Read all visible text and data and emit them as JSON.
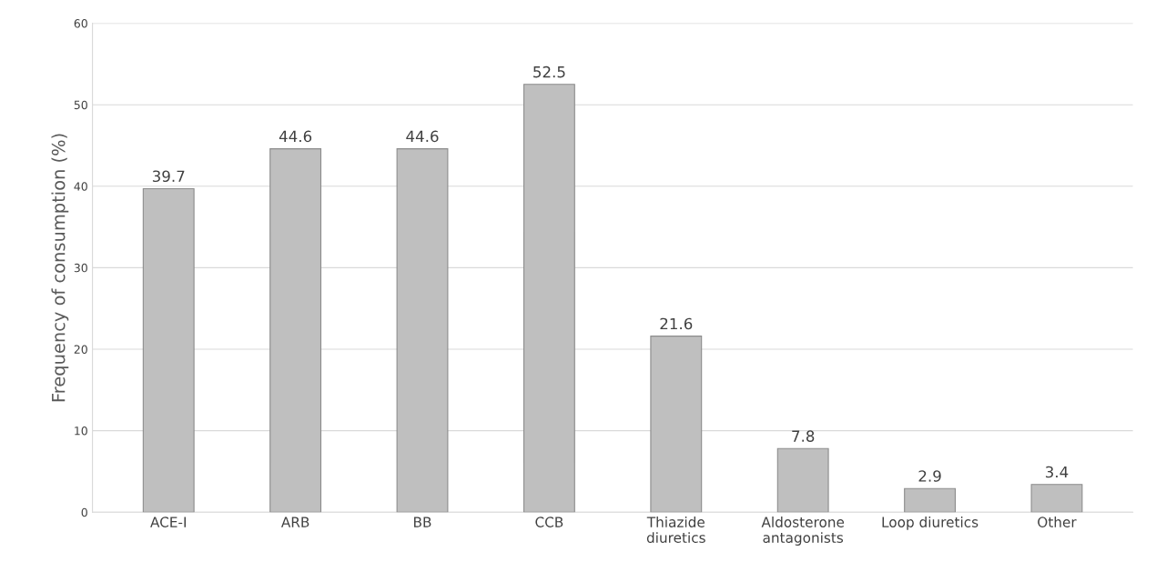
{
  "chart_data": {
    "type": "bar",
    "ylabel": "Frequency of consumption (%)",
    "categories": [
      "ACE-I",
      "ARB",
      "BB",
      "CCB",
      "Thiazide\ndiuretics",
      "Aldosterone\nantagonists",
      "Loop diuretics",
      "Other"
    ],
    "values": [
      39.7,
      44.6,
      44.6,
      52.5,
      21.6,
      7.8,
      2.9,
      3.4
    ],
    "color": "#bfbfbf",
    "ylim": [
      0,
      60
    ],
    "yticks": [
      0,
      10,
      20,
      30,
      40,
      50,
      60
    ],
    "grid": "y",
    "data_labels": true
  }
}
